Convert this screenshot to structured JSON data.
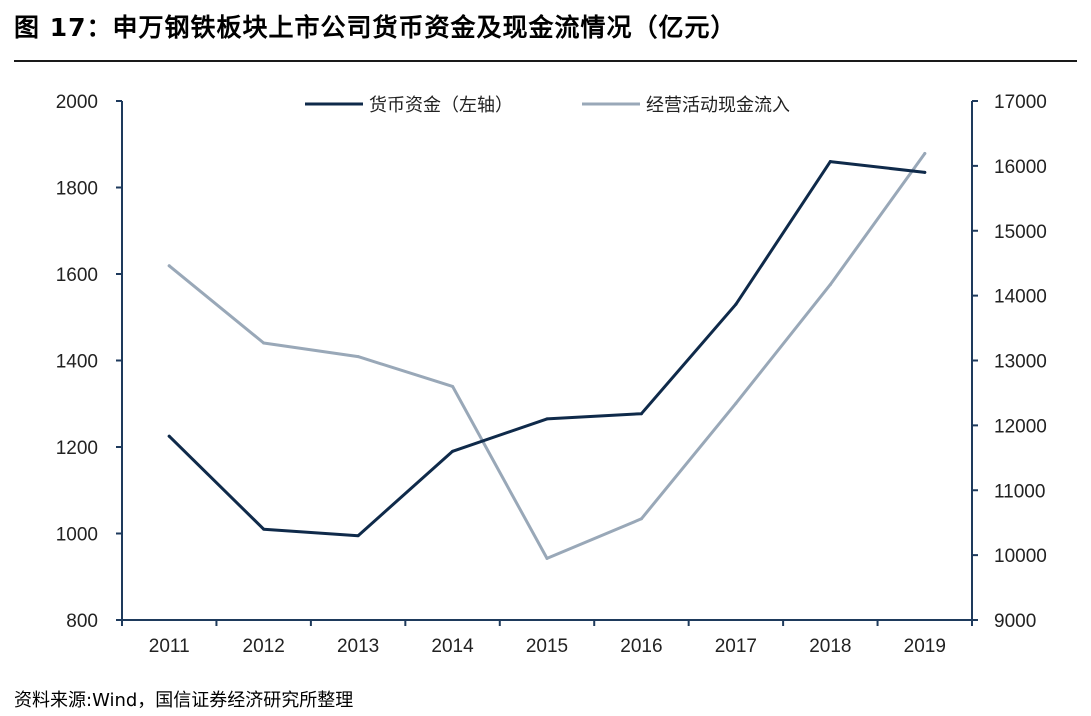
{
  "figure": {
    "title": "图 17：申万钢铁板块上市公司货币资金及现金流情况（亿元）",
    "source": "资料来源:Wind，国信证券经济研究所整理"
  },
  "chart_data": {
    "type": "line",
    "title": "图 17：申万钢铁板块上市公司货币资金及现金流情况（亿元）",
    "categories": [
      "2011",
      "2012",
      "2013",
      "2014",
      "2015",
      "2016",
      "2017",
      "2018",
      "2019"
    ],
    "y_left": {
      "ylim": [
        800,
        2000
      ],
      "ticks": [
        "800",
        "1000",
        "1200",
        "1400",
        "1600",
        "1800",
        "2000"
      ]
    },
    "y_right": {
      "ylim": [
        9000,
        17000
      ],
      "ticks": [
        "9000",
        "10000",
        "11000",
        "12000",
        "13000",
        "14000",
        "15000",
        "16000",
        "17000"
      ]
    },
    "series": [
      {
        "name": "货币资金（左轴）",
        "axis": "left",
        "color": "#0f2a4a",
        "values": [
          1225,
          1010,
          995,
          1190,
          1265,
          1277,
          1530,
          1860,
          1835
        ]
      },
      {
        "name": "经营活动现金流入",
        "axis": "right",
        "color": "#99a8b8",
        "values": [
          14460,
          13270,
          13060,
          12600,
          9950,
          10560,
          12340,
          14170,
          16190
        ]
      }
    ],
    "grid": false,
    "legend": "top-center"
  }
}
